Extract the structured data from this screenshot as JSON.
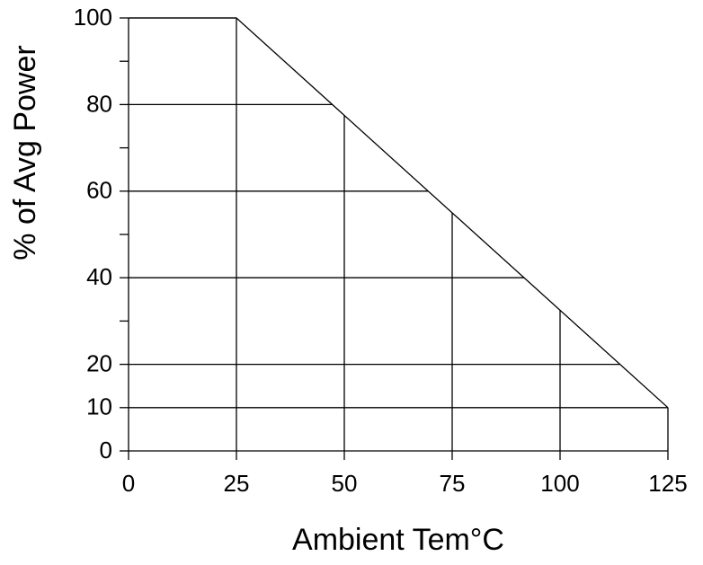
{
  "chart_data": {
    "type": "line",
    "x_label": "Ambient Tem°C",
    "y_label": "% of Avg Power",
    "x": [
      0,
      25,
      125
    ],
    "series": [
      {
        "color": "#000000",
        "values": [
          100,
          100,
          10
        ]
      }
    ],
    "xlim": [
      0,
      125
    ],
    "xticks": [
      0,
      25,
      50,
      75,
      100,
      125
    ],
    "ylim": [
      0,
      100
    ],
    "yticks": [
      0,
      10,
      20,
      40,
      60,
      80,
      100
    ],
    "yminorticks": [
      30,
      50,
      70,
      90
    ],
    "grid": true
  }
}
